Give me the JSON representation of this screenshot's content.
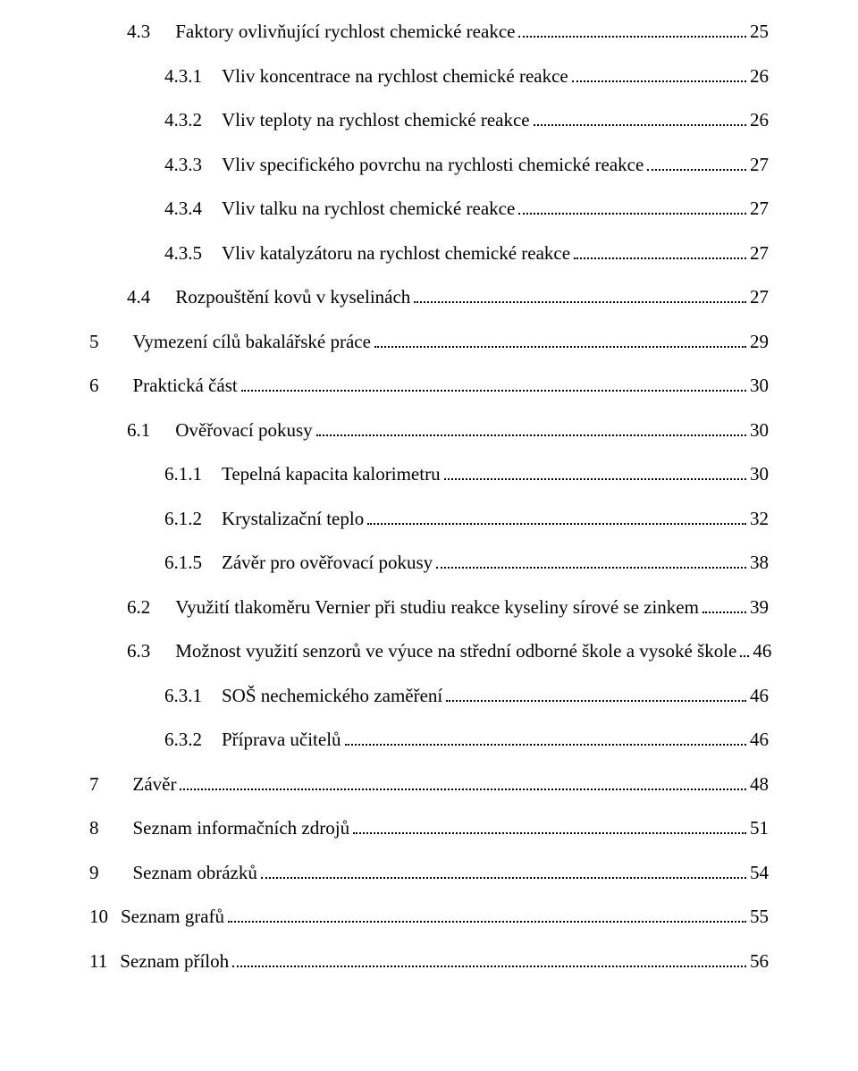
{
  "toc": [
    {
      "lvl": 1,
      "gap": "med",
      "num": "4.3",
      "title": "Faktory ovlivňující rychlost chemické reakce",
      "page": "25"
    },
    {
      "lvl": 2,
      "gap": "sm",
      "num": "4.3.1",
      "title": "Vliv koncentrace na rychlost chemické reakce",
      "page": "26"
    },
    {
      "lvl": 2,
      "gap": "sm",
      "num": "4.3.2",
      "title": "Vliv teploty na rychlost chemické reakce",
      "page": "26"
    },
    {
      "lvl": 2,
      "gap": "sm",
      "num": "4.3.3",
      "title": "Vliv specifického povrchu na rychlosti chemické reakce",
      "page": "27"
    },
    {
      "lvl": 2,
      "gap": "sm",
      "num": "4.3.4",
      "title": "Vliv talku na rychlost chemické reakce",
      "page": "27"
    },
    {
      "lvl": 2,
      "gap": "sm",
      "num": "4.3.5",
      "title": "Vliv katalyzátoru na rychlost chemické reakce",
      "page": "27"
    },
    {
      "lvl": 1,
      "gap": "med",
      "num": "4.4",
      "title": "Rozpouštění kovů v kyselinách",
      "page": "27"
    },
    {
      "lvl": 0,
      "gap": "wide",
      "num": "5",
      "title": "Vymezení cílů bakalářské práce",
      "page": "29"
    },
    {
      "lvl": 0,
      "gap": "wide",
      "num": "6",
      "title": "Praktická část",
      "page": "30"
    },
    {
      "lvl": 1,
      "gap": "med",
      "num": "6.1",
      "title": "Ověřovací pokusy",
      "page": "30"
    },
    {
      "lvl": 2,
      "gap": "sm",
      "num": "6.1.1",
      "title": "Tepelná kapacita kalorimetru",
      "page": "30"
    },
    {
      "lvl": 2,
      "gap": "sm",
      "num": "6.1.2",
      "title": "Krystalizační teplo",
      "page": "32"
    },
    {
      "lvl": 2,
      "gap": "sm",
      "num": "6.1.5",
      "title": "Závěr pro ověřovací pokusy",
      "page": "38"
    },
    {
      "lvl": 1,
      "gap": "med",
      "num": "6.2",
      "title": "Využití tlakoměru Vernier při studiu reakce kyseliny sírové se zinkem",
      "page": "39"
    },
    {
      "lvl": 1,
      "gap": "med",
      "num": "6.3",
      "title": "Možnost využití senzorů ve výuce na střední odborné škole a vysoké škole",
      "page": "46"
    },
    {
      "lvl": 2,
      "gap": "sm",
      "num": "6.3.1",
      "title": "SOŠ nechemického zaměření",
      "page": "46"
    },
    {
      "lvl": 2,
      "gap": "sm",
      "num": "6.3.2",
      "title": "Příprava učitelů",
      "page": "46"
    },
    {
      "lvl": 0,
      "gap": "wide",
      "num": "7",
      "title": "Závěr",
      "page": "48"
    },
    {
      "lvl": 0,
      "gap": "wide",
      "num": "8",
      "title": "Seznam informačních zdrojů",
      "page": "51"
    },
    {
      "lvl": 0,
      "gap": "wide",
      "num": "9",
      "title": "Seznam obrázků",
      "page": "54"
    },
    {
      "lvl": 0,
      "gap": "xs",
      "num": "10",
      "title": "Seznam grafů",
      "page": "55"
    },
    {
      "lvl": 0,
      "gap": "xs",
      "num": "11",
      "title": "Seznam příloh",
      "page": "56"
    }
  ]
}
